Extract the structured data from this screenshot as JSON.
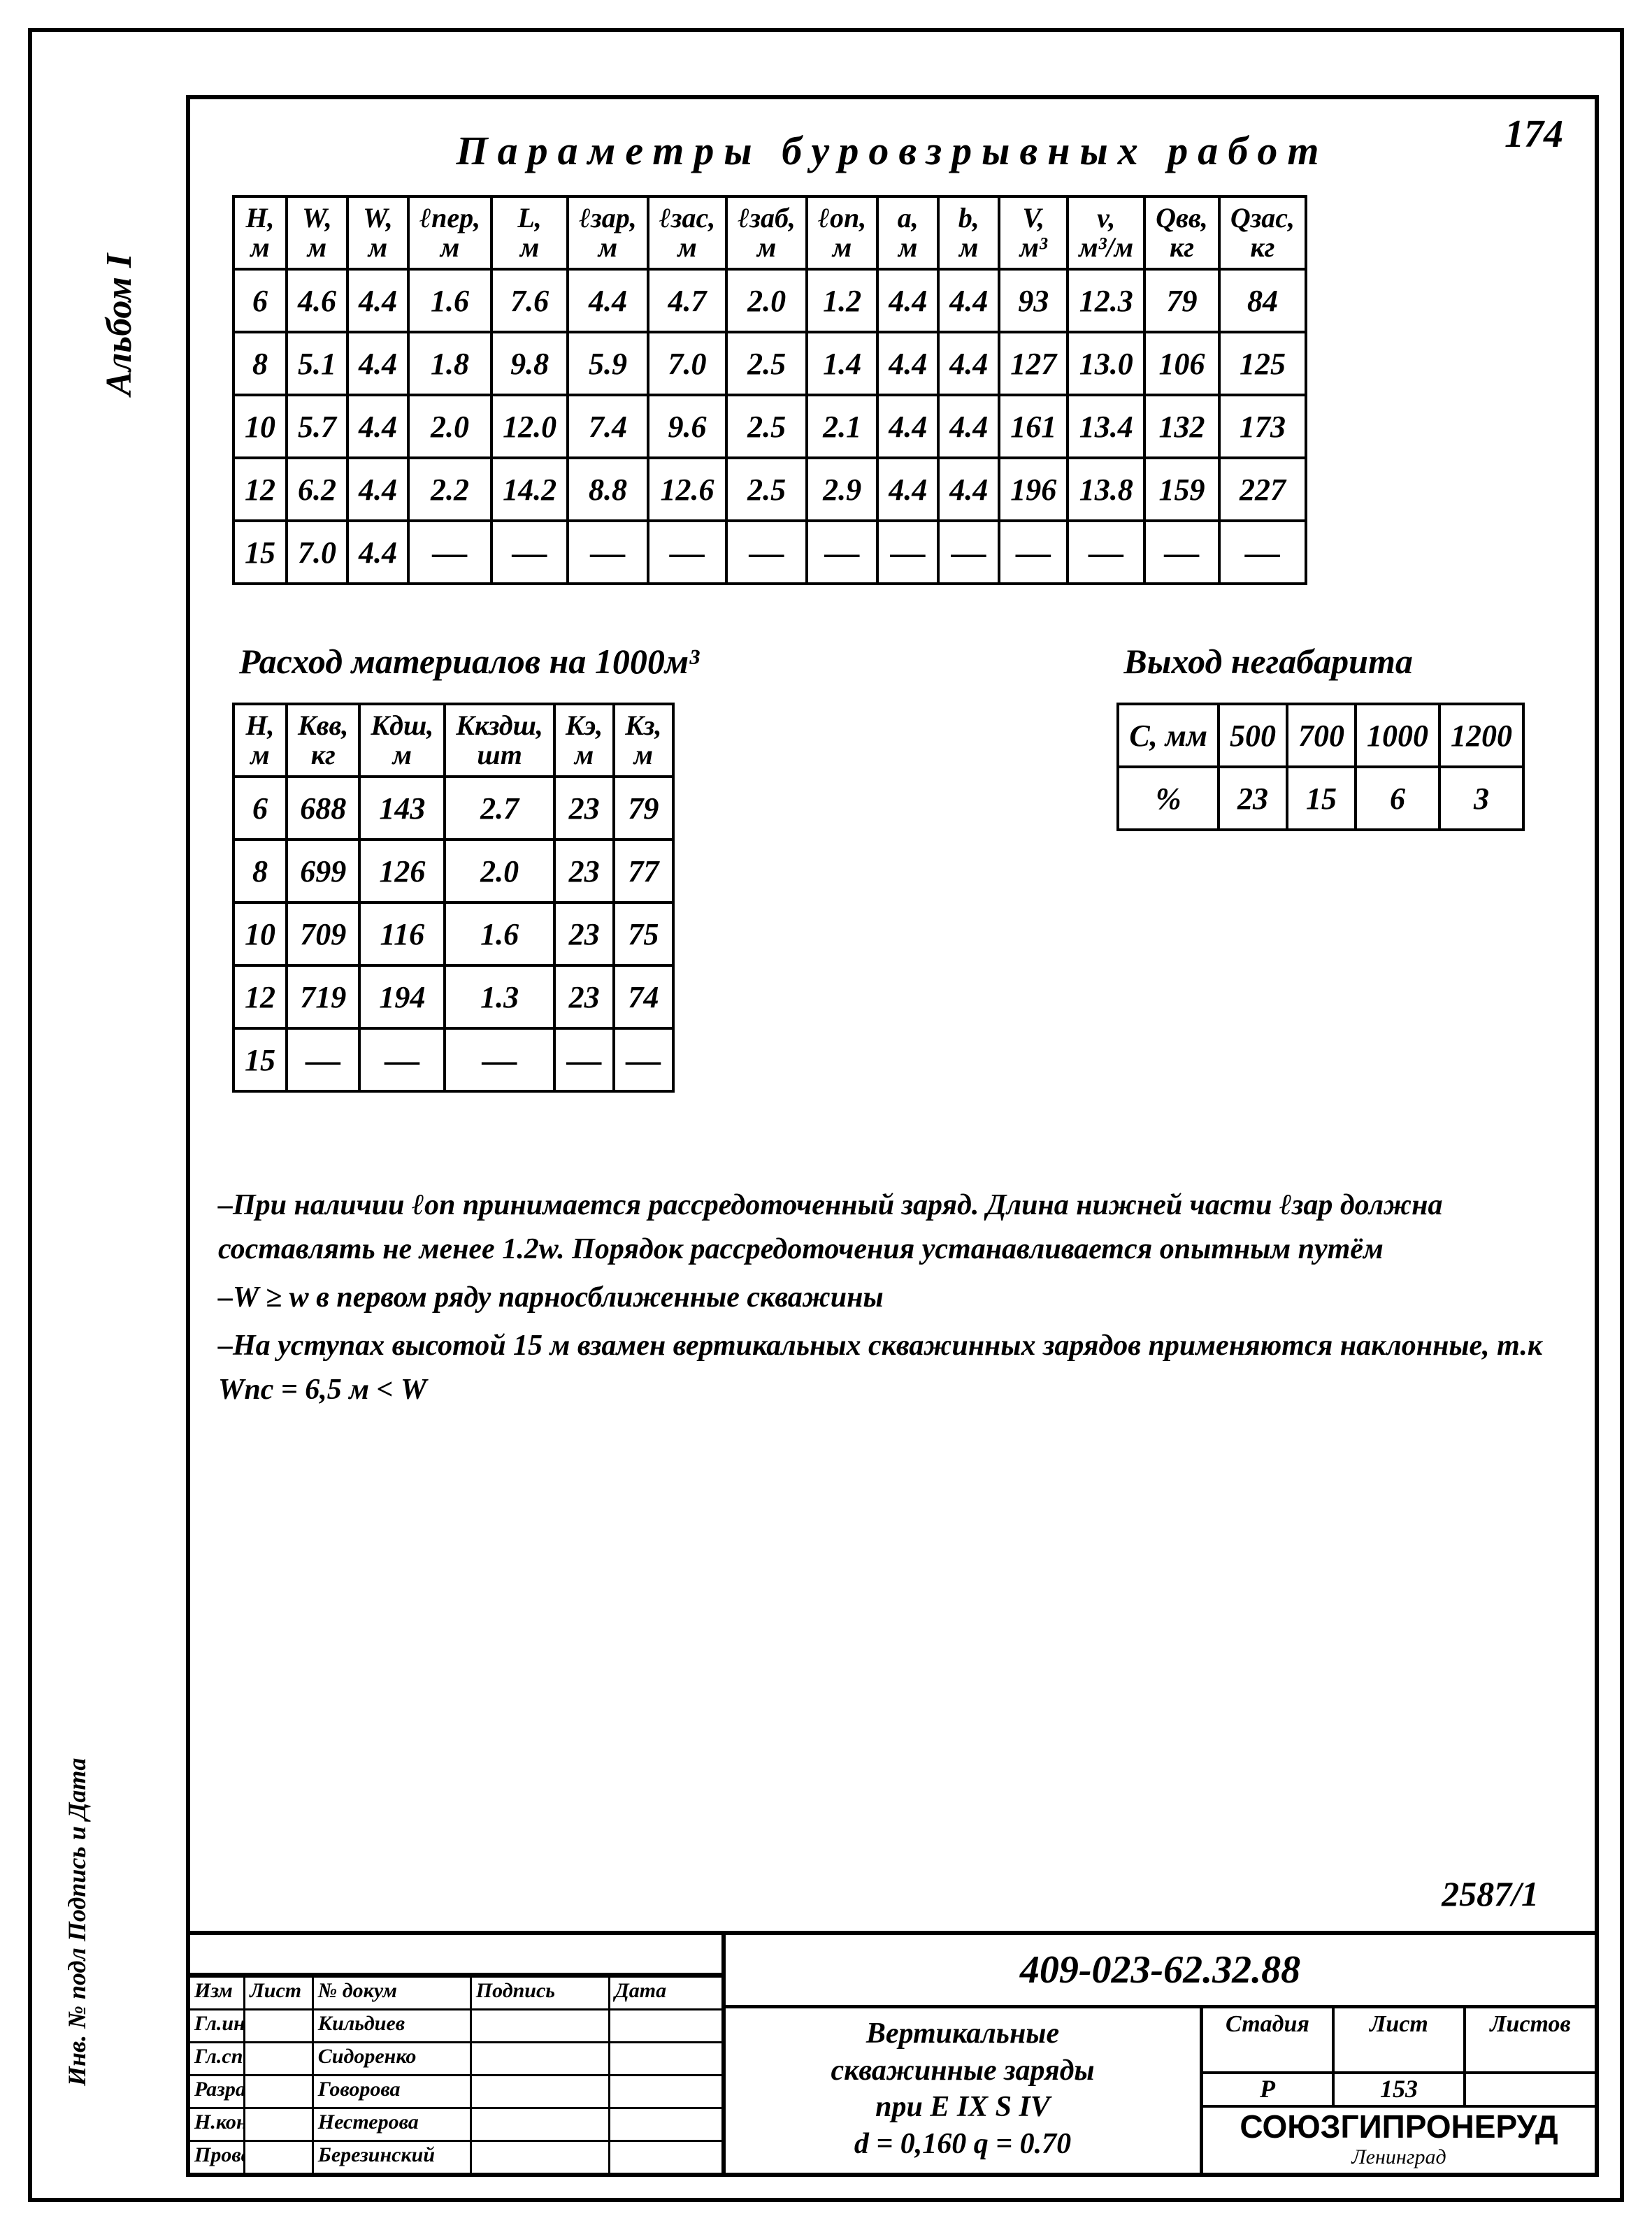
{
  "page_number": "174",
  "side_label": "Альбом I",
  "side_label2": "Инв. № подл   Подпись и Дата",
  "main_title": "Параметры буровзрывных работ",
  "table1": {
    "headers": [
      "H,\nм",
      "W,\nм",
      "W,\nм",
      "ℓпер,\nм",
      "L,\nм",
      "ℓзар,\nм",
      "ℓзас,\nм",
      "ℓзаб,\nм",
      "ℓоп,\nм",
      "a,\nм",
      "b,\nм",
      "V,\nм³",
      "v,\nм³/м",
      "Qвв,\nкг",
      "Qзас,\nкг"
    ],
    "rows": [
      [
        "6",
        "4.6",
        "4.4",
        "1.6",
        "7.6",
        "4.4",
        "4.7",
        "2.0",
        "1.2",
        "4.4",
        "4.4",
        "93",
        "12.3",
        "79",
        "84"
      ],
      [
        "8",
        "5.1",
        "4.4",
        "1.8",
        "9.8",
        "5.9",
        "7.0",
        "2.5",
        "1.4",
        "4.4",
        "4.4",
        "127",
        "13.0",
        "106",
        "125"
      ],
      [
        "10",
        "5.7",
        "4.4",
        "2.0",
        "12.0",
        "7.4",
        "9.6",
        "2.5",
        "2.1",
        "4.4",
        "4.4",
        "161",
        "13.4",
        "132",
        "173"
      ],
      [
        "12",
        "6.2",
        "4.4",
        "2.2",
        "14.2",
        "8.8",
        "12.6",
        "2.5",
        "2.9",
        "4.4",
        "4.4",
        "196",
        "13.8",
        "159",
        "227"
      ],
      [
        "15",
        "7.0",
        "4.4",
        "—",
        "—",
        "—",
        "—",
        "—",
        "—",
        "—",
        "—",
        "—",
        "—",
        "—",
        "—"
      ]
    ]
  },
  "subtitle_left": "Расход материалов на 1000м³",
  "subtitle_right": "Выход негабарита",
  "table2": {
    "headers": [
      "H,\nм",
      "Kвв,\nкг",
      "Kдш,\nм",
      "Kкздш,\nшт",
      "Kэ,\nм",
      "Kз,\nм"
    ],
    "rows": [
      [
        "6",
        "688",
        "143",
        "2.7",
        "23",
        "79"
      ],
      [
        "8",
        "699",
        "126",
        "2.0",
        "23",
        "77"
      ],
      [
        "10",
        "709",
        "116",
        "1.6",
        "23",
        "75"
      ],
      [
        "12",
        "719",
        "194",
        "1.3",
        "23",
        "74"
      ],
      [
        "15",
        "—",
        "—",
        "—",
        "—",
        "—"
      ]
    ]
  },
  "table3": {
    "rows": [
      [
        "C, мм",
        "500",
        "700",
        "1000",
        "1200"
      ],
      [
        "%",
        "23",
        "15",
        "6",
        "3"
      ]
    ]
  },
  "notes": [
    "–При наличии ℓоп принимается рассредоточенный заряд. Длина нижней части ℓзар должна составлять не менее 1.2w. Порядок рассредоточения устанавливается опытным путём",
    "–W ≥ w  в первом ряду парносближенные скважины",
    "–На уступах высотой 15 м взамен вертикальных скважинных зарядов применяются наклонные, т.к  Wпс = 6,5 м < W"
  ],
  "ref_number": "2587/1",
  "titleblock": {
    "doc_code": "409-023-62.32.88",
    "desc_lines": [
      "Вертикальные",
      "скважинные заряды",
      "при  E IX    S IV",
      "d = 0,160    q = 0.70"
    ],
    "meta_headers": [
      "Стадия",
      "Лист",
      "Листов"
    ],
    "meta_values": [
      "Р",
      "153",
      ""
    ],
    "org": "СОЮЗГИПРОНЕРУД",
    "org_city": "Ленинград",
    "left_rows_header": [
      "Изм",
      "Лист",
      "№ докум",
      "Подпись",
      "Дата"
    ],
    "left_rows": [
      [
        "Гл.инж.пр",
        "",
        "Кильдиев",
        "",
        ""
      ],
      [
        "Гл.спец",
        "",
        "Сидоренко",
        "",
        ""
      ],
      [
        "Разраб",
        "",
        "Говорова",
        "",
        ""
      ],
      [
        "Н.контр",
        "",
        "Нестерова",
        "",
        ""
      ],
      [
        "Проверил",
        "",
        "Березинский",
        "",
        ""
      ]
    ]
  }
}
